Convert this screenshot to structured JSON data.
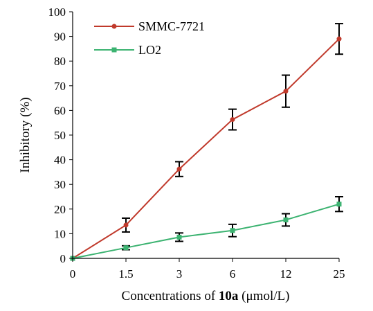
{
  "chart_data": {
    "type": "line",
    "categories": [
      "0",
      "1.5",
      "3",
      "6",
      "12",
      "25"
    ],
    "xlabel": {
      "before": "Concentrations of ",
      "bold": "10a",
      "after": " (μmol/L)"
    },
    "ylabel": "Inhibitory (%)",
    "ylim": [
      0,
      100
    ],
    "yticks": [
      "0",
      "10",
      "20",
      "30",
      "40",
      "50",
      "60",
      "70",
      "80",
      "90",
      "100"
    ],
    "grid": false,
    "legend_position": "top-left",
    "series": [
      {
        "name": "SMMC-7721",
        "color": "#c0392b",
        "marker": "circle",
        "values": [
          0,
          13.5,
          36.2,
          56.3,
          67.8,
          89.0
        ],
        "errors": [
          0,
          2.8,
          3.0,
          4.2,
          6.5,
          6.2
        ]
      },
      {
        "name": "LO2",
        "color": "#3cb371",
        "marker": "square",
        "values": [
          0,
          4.3,
          8.6,
          11.3,
          15.6,
          22.0
        ],
        "errors": [
          0,
          0.8,
          1.7,
          2.5,
          2.5,
          3.0
        ]
      }
    ]
  }
}
